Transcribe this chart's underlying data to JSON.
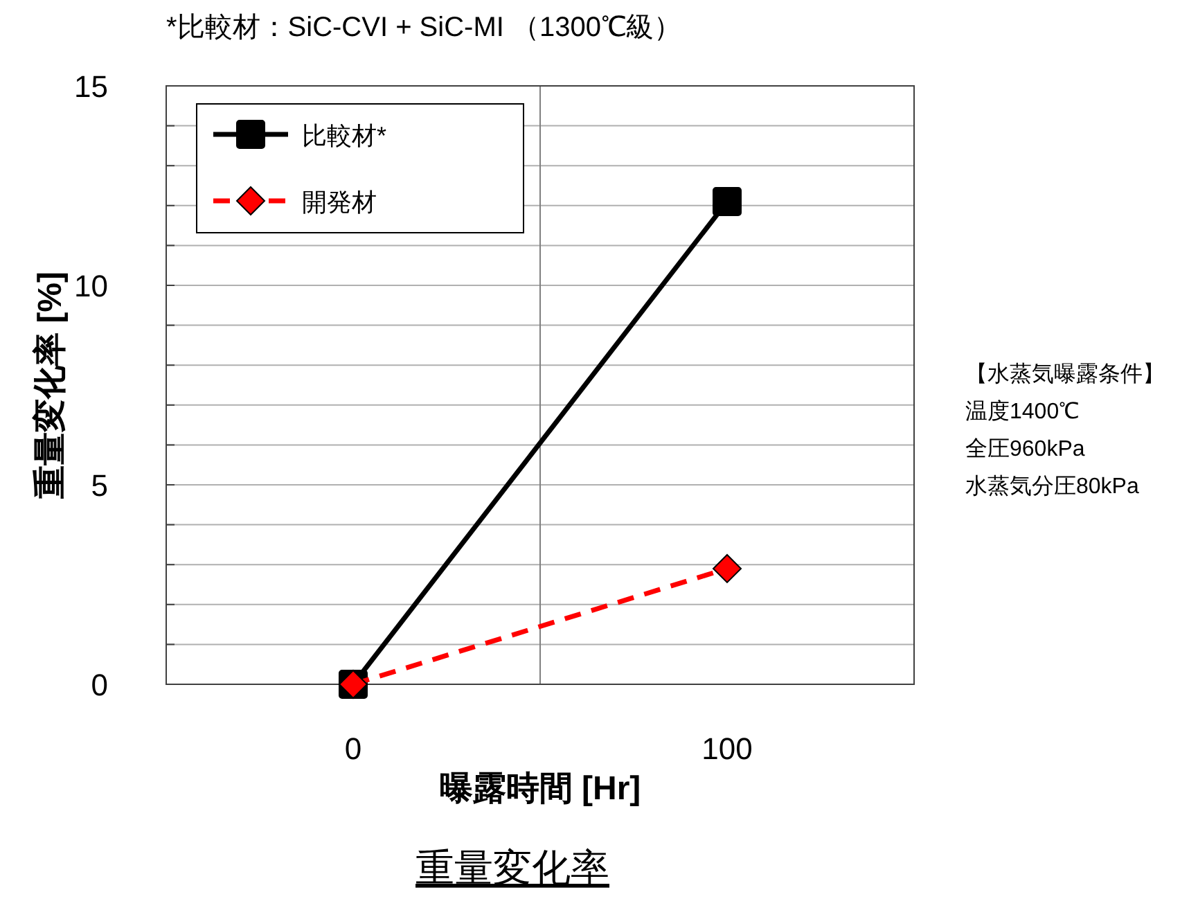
{
  "chart_data": {
    "type": "line",
    "title": "重量変化率",
    "xlabel": "曝露時間 [Hr]",
    "ylabel": "重量変化率 [%]",
    "x": [
      0,
      100
    ],
    "series": [
      {
        "name": "比較材*",
        "color": "#000000",
        "values": [
          0,
          12.1
        ],
        "marker": "square",
        "line_style": "solid"
      },
      {
        "name": "開発材",
        "color": "#ff0000",
        "values": [
          0,
          2.9
        ],
        "marker": "diamond",
        "line_style": "dashed"
      }
    ],
    "xlim": [
      -50,
      150
    ],
    "xticks": [
      0,
      100
    ],
    "ylim": [
      0,
      15
    ],
    "yticks": [
      0,
      {
        "value": 1,
        "label": null
      },
      {
        "value": 2,
        "label": null
      },
      {
        "value": 3,
        "label": null
      },
      {
        "value": 4,
        "label": null
      },
      5,
      {
        "value": 6,
        "label": null
      },
      {
        "value": 7,
        "label": null
      },
      {
        "value": 8,
        "label": null
      },
      {
        "value": 9,
        "label": null
      },
      10,
      {
        "value": 11,
        "label": null
      },
      {
        "value": 12,
        "label": null
      },
      {
        "value": 13,
        "label": null
      },
      {
        "value": 14,
        "label": null
      },
      15
    ],
    "grid": "y",
    "ref_lines": [
      {
        "axis": "x",
        "value": 50,
        "color": "#808080"
      }
    ],
    "legend": "top left",
    "annotations": [
      "*比較材：SiC-CVI + SiC-MI （1300℃級）",
      "【水蒸気曝露条件】",
      "温度1400℃",
      "全圧960kPa",
      "水蒸気分圧80kPa"
    ]
  }
}
